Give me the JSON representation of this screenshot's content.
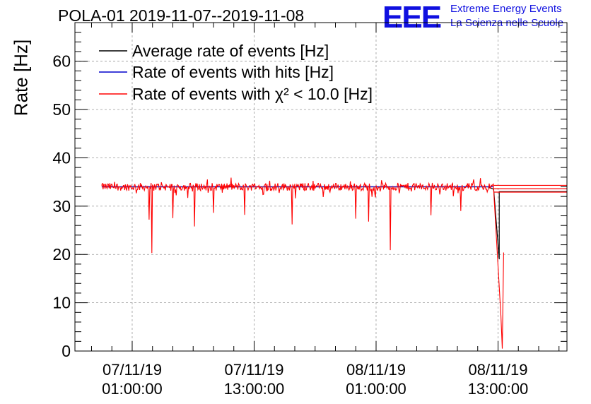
{
  "header": {
    "title": "POLA-01 2019-11-07--2019-11-08",
    "logo_text": "EEE",
    "logo_line1": "Extreme Energy Events",
    "logo_line2": "La Scienza nelle Scuole"
  },
  "colors": {
    "average": "#000000",
    "hits": "#0000cc",
    "chi2": "#ff0000",
    "logo": "#1010e0",
    "grid": "#999999"
  },
  "chart_data": {
    "type": "line",
    "title": "POLA-01 2019-11-07--2019-11-08",
    "xlabel": "",
    "ylabel": "Rate [Hz]",
    "ylim": [
      0,
      68
    ],
    "yticks": [
      0,
      10,
      20,
      30,
      40,
      50,
      60
    ],
    "xlim": [
      "2019-11-06 19:22",
      "2019-11-08 19:47"
    ],
    "xticks": [
      {
        "value": "2019-11-07 01:00:00",
        "line1": "07/11/19",
        "line2": "01:00:00"
      },
      {
        "value": "2019-11-07 13:00:00",
        "line1": "07/11/19",
        "line2": "13:00:00"
      },
      {
        "value": "2019-11-08 01:00:00",
        "line1": "08/11/19",
        "line2": "01:00:00"
      },
      {
        "value": "2019-11-08 13:00:00",
        "line1": "08/11/19",
        "line2": "13:00:00"
      }
    ],
    "grid": true,
    "legend_position": "top-left",
    "series": [
      {
        "name": "Average rate of events [Hz]",
        "color": "#000000",
        "points": [
          [
            "2019-11-06 22:00",
            34
          ],
          [
            "2019-11-07 12:00",
            34
          ],
          [
            "2019-11-08 00:00",
            34
          ],
          [
            "2019-11-08 12:00",
            34
          ],
          [
            "2019-11-08 12:34",
            33.5
          ],
          [
            "2019-11-08 13:07",
            19
          ],
          [
            "2019-11-08 13:07",
            33
          ],
          [
            "2019-11-08 19:47",
            33
          ]
        ]
      },
      {
        "name": "Rate of events with hits [Hz]",
        "color": "#0000cc",
        "points": [
          [
            "2019-11-06 22:00",
            34
          ],
          [
            "2019-11-08 12:35",
            34
          ]
        ]
      },
      {
        "name": "Rate of events with χ² < 10.0 [Hz]",
        "color": "#ff0000",
        "baseline": 34,
        "range": [
          "2019-11-06 22:00",
          "2019-11-08 12:35"
        ],
        "dips": [
          [
            "2019-11-07 02:40",
            27.2
          ],
          [
            "2019-11-07 02:55",
            20.3
          ],
          [
            "2019-11-07 05:00",
            27.5
          ],
          [
            "2019-11-07 07:08",
            25.8
          ],
          [
            "2019-11-07 09:00",
            28.6
          ],
          [
            "2019-11-07 12:04",
            28.2
          ],
          [
            "2019-11-07 14:50",
            27.0
          ],
          [
            "2019-11-07 16:44",
            26.2
          ],
          [
            "2019-11-07 21:30",
            26.4
          ],
          [
            "2019-11-07 23:00",
            27.4
          ],
          [
            "2019-11-08 00:15",
            26.8
          ],
          [
            "2019-11-08 02:25",
            20.9
          ],
          [
            "2019-11-08 05:10",
            25.0
          ],
          [
            "2019-11-08 06:25",
            28.1
          ],
          [
            "2019-11-08 09:20",
            29.0
          ]
        ],
        "end_points": [
          [
            "2019-11-08 13:17",
            7.2
          ],
          [
            "2019-11-08 13:25",
            0.5
          ],
          [
            "2019-11-08 13:33",
            20.4
          ]
        ],
        "tail_levels": [
          32.9,
          33.6,
          34.3
        ]
      }
    ]
  }
}
